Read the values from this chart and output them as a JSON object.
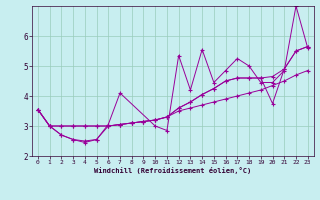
{
  "title": "",
  "xlabel": "Windchill (Refroidissement éolien,°C)",
  "ylabel": "",
  "background_color": "#c8eef0",
  "grid_color": "#99ccbb",
  "line_color": "#990099",
  "xlim": [
    -0.5,
    23.5
  ],
  "ylim": [
    2.0,
    7.0
  ],
  "xticks": [
    0,
    1,
    2,
    3,
    4,
    5,
    6,
    7,
    8,
    9,
    10,
    11,
    12,
    13,
    14,
    15,
    16,
    17,
    18,
    19,
    20,
    21,
    22,
    23
  ],
  "yticks": [
    2,
    3,
    4,
    5,
    6
  ],
  "lines": [
    {
      "x": [
        0,
        1,
        2,
        3,
        4,
        5,
        6,
        7,
        10,
        11,
        12,
        13,
        14,
        15,
        16,
        17,
        18,
        19,
        20,
        21,
        22,
        23
      ],
      "y": [
        3.55,
        3.0,
        2.7,
        2.55,
        2.45,
        2.55,
        3.05,
        4.1,
        3.0,
        2.85,
        5.35,
        4.2,
        5.55,
        4.45,
        4.85,
        5.25,
        5.0,
        4.45,
        4.45,
        4.85,
        7.0,
        5.6
      ]
    },
    {
      "x": [
        0,
        1,
        2,
        3,
        4,
        5,
        6,
        7,
        8,
        9,
        10,
        11,
        12,
        13,
        14,
        15,
        16,
        17,
        18,
        19,
        20,
        21,
        22,
        23
      ],
      "y": [
        3.55,
        3.0,
        3.0,
        3.0,
        3.0,
        3.0,
        3.0,
        3.05,
        3.1,
        3.15,
        3.2,
        3.3,
        3.5,
        3.6,
        3.7,
        3.8,
        3.9,
        4.0,
        4.1,
        4.2,
        4.35,
        4.5,
        4.7,
        4.85
      ]
    },
    {
      "x": [
        0,
        1,
        2,
        3,
        4,
        5,
        6,
        7,
        8,
        9,
        10,
        11,
        12,
        13,
        14,
        15,
        16,
        17,
        18,
        19,
        20,
        21,
        22,
        23
      ],
      "y": [
        3.55,
        3.0,
        3.0,
        3.0,
        3.0,
        3.0,
        3.0,
        3.05,
        3.1,
        3.15,
        3.2,
        3.3,
        3.6,
        3.8,
        4.05,
        4.25,
        4.5,
        4.6,
        4.6,
        4.6,
        4.65,
        4.9,
        5.5,
        5.65
      ]
    },
    {
      "x": [
        0,
        1,
        2,
        3,
        4,
        5,
        6,
        7,
        8,
        9,
        10,
        11,
        12,
        13,
        14,
        15,
        16,
        17,
        18,
        19,
        20,
        21,
        22,
        23
      ],
      "y": [
        3.55,
        3.0,
        2.7,
        2.55,
        2.5,
        2.55,
        3.0,
        3.05,
        3.1,
        3.15,
        3.2,
        3.3,
        3.6,
        3.8,
        4.05,
        4.25,
        4.5,
        4.6,
        4.6,
        4.6,
        3.75,
        4.9,
        5.5,
        5.65
      ]
    }
  ]
}
